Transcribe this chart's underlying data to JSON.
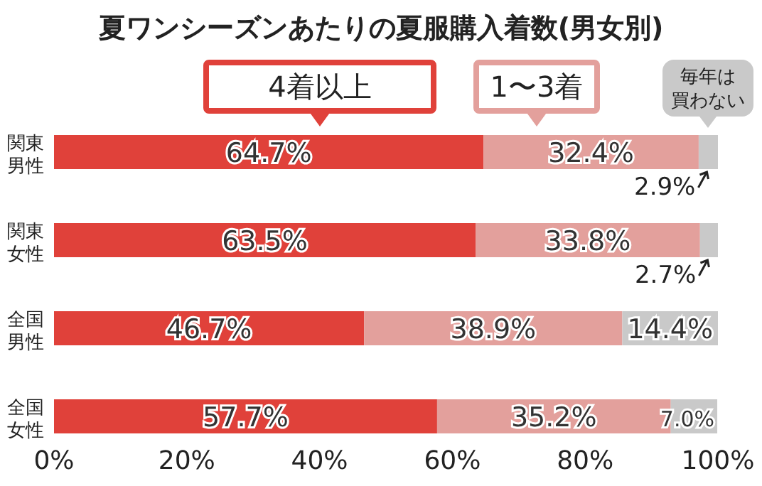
{
  "chart_data": {
    "type": "bar",
    "orientation": "horizontal",
    "stacked": true,
    "title": "夏ワンシーズンあたりの夏服購入着数(男女別)",
    "categories": [
      "関東男性",
      "関東女性",
      "全国男性",
      "全国女性"
    ],
    "series": [
      {
        "name": "4着以上",
        "color": "#e0413a",
        "values": [
          64.7,
          63.5,
          46.7,
          57.7
        ],
        "value_labels": [
          "64.7%",
          "63.5%",
          "46.7%",
          "57.7%"
        ]
      },
      {
        "name": "1〜3着",
        "color": "#e3a09c",
        "values": [
          32.4,
          33.8,
          38.9,
          35.2
        ],
        "value_labels": [
          "32.4%",
          "33.8%",
          "38.9%",
          "35.2%"
        ]
      },
      {
        "name": "毎年は買わない",
        "color": "#c9c9c9",
        "values": [
          2.9,
          2.7,
          14.4,
          7.0
        ],
        "value_labels": [
          "2.9%",
          "2.7%",
          "14.4%",
          "7.0%"
        ]
      }
    ],
    "xlim": [
      0,
      100
    ],
    "xticks": [
      {
        "value": 0,
        "label": "0%"
      },
      {
        "value": 20,
        "label": "20%"
      },
      {
        "value": 40,
        "label": "40%"
      },
      {
        "value": 60,
        "label": "60%"
      },
      {
        "value": 80,
        "label": "80%"
      },
      {
        "value": 100,
        "label": "100%"
      }
    ],
    "legend": "top"
  }
}
